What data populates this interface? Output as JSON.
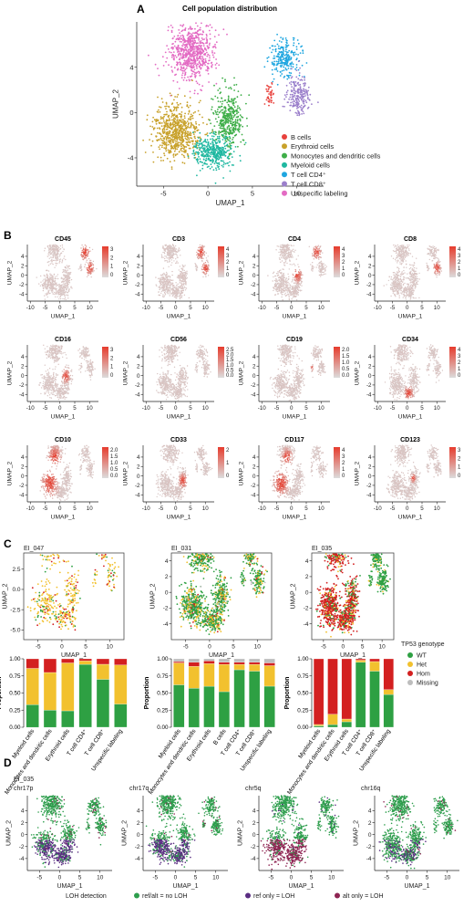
{
  "figure": {
    "panels": {
      "A": "A",
      "B": "B",
      "C": "C",
      "D": "D"
    }
  },
  "colors": {
    "B cells": "#E8413C",
    "Erythroid cells": "#C8A12A",
    "Monocytes and dendritic cells": "#3FAE49",
    "Myeloid cells": "#1FB8A1",
    "T cell CD4+": "#1FA6E0",
    "T cell CD8+": "#9B7FCB",
    "Unspecific labeling": "#E36BC3",
    "WT": "#2EA043",
    "Het": "#F2C12E",
    "Hom": "#D32020",
    "Missing": "#BDBDBD",
    "loh_ok": "#2E9E4D",
    "loh_ref": "#5A2D82",
    "loh_alt": "#8E2452"
  },
  "chart_data": [
    {
      "id": "A",
      "type": "scatter",
      "title": "Cell population distribution",
      "xlabel": "UMAP_1",
      "ylabel": "UMAP_2",
      "xlim": [
        -8,
        13
      ],
      "ylim": [
        -6.5,
        8
      ],
      "xticks": [
        "-5",
        "0",
        "5",
        "10"
      ],
      "yticks": [
        "-4",
        "0",
        "4"
      ],
      "legend": [
        "B cells",
        "Erythroid cells",
        "Monocytes and dendritic cells",
        "Myeloid cells",
        "T cell CD4+",
        "T cell CD8+",
        "Unspecific labeling"
      ],
      "legend_display": [
        "B cells",
        "Erythroid cells",
        "Monocytes and dendritic cells",
        "Myeloid cells",
        "T cell CD4⁺",
        "T cell CD8⁺",
        "Unspecific labeling"
      ],
      "clusters": [
        {
          "name": "Unspecific labeling",
          "cx": -1.8,
          "cy": 5.2,
          "sx": 1.6,
          "sy": 1.6,
          "n": 700
        },
        {
          "name": "Erythroid cells",
          "cx": -3.5,
          "cy": -1.8,
          "sx": 1.6,
          "sy": 1.5,
          "n": 700
        },
        {
          "name": "Monocytes and dendritic cells",
          "cx": 2.3,
          "cy": -0.6,
          "sx": 1.0,
          "sy": 1.6,
          "n": 400
        },
        {
          "name": "Myeloid cells",
          "cx": 0.6,
          "cy": -3.5,
          "sx": 1.4,
          "sy": 0.9,
          "n": 400
        },
        {
          "name": "T cell CD4+",
          "cx": 8.6,
          "cy": 4.8,
          "sx": 1.0,
          "sy": 1.0,
          "n": 250
        },
        {
          "name": "T cell CD8+",
          "cx": 10.2,
          "cy": 1.5,
          "sx": 0.8,
          "sy": 1.0,
          "n": 220
        },
        {
          "name": "B cells",
          "cx": 7.0,
          "cy": 1.6,
          "sx": 0.3,
          "sy": 0.7,
          "n": 40
        }
      ]
    },
    {
      "id": "B",
      "type": "scatter",
      "xlabel": "UMAP_1",
      "ylabel": "UMAP_2",
      "xticks": [
        "-10",
        "-5",
        "0",
        "5",
        "10"
      ],
      "yticks": [
        "-4",
        "-2",
        "0",
        "2",
        "4"
      ],
      "markers": [
        {
          "name": "CD45",
          "scale": [
            "3",
            "2",
            "1",
            "0"
          ],
          "hot": [
            [
              8.5,
              4.8,
              1.2
            ],
            [
              10,
              1.5,
              1.0
            ]
          ]
        },
        {
          "name": "CD3",
          "scale": [
            "4",
            "3",
            "2",
            "1",
            "0"
          ],
          "hot": [
            [
              8.5,
              4.8,
              1.0
            ],
            [
              10,
              1.5,
              0.9
            ]
          ]
        },
        {
          "name": "CD4",
          "scale": [
            "4",
            "3",
            "2",
            "1",
            "0"
          ],
          "hot": [
            [
              8.5,
              4.8,
              1.0
            ],
            [
              2,
              0,
              1.0
            ]
          ]
        },
        {
          "name": "CD8",
          "scale": [
            "4",
            "3",
            "2",
            "1",
            "0"
          ],
          "hot": [
            [
              10,
              1.5,
              0.9
            ]
          ]
        },
        {
          "name": "CD16",
          "scale": [
            "3",
            "2",
            "1",
            "0"
          ],
          "hot": [
            [
              2,
              0,
              1.0
            ]
          ]
        },
        {
          "name": "CD56",
          "scale": [
            "2.5",
            "2.0",
            "1.5",
            "1.0",
            "0.5",
            "0.0"
          ],
          "hot": [
            [
              0,
              0,
              0.3
            ]
          ]
        },
        {
          "name": "CD19",
          "scale": [
            "2.0",
            "1.5",
            "1.0",
            "0.5",
            "0.0"
          ],
          "hot": [
            [
              7,
              1.6,
              0.4
            ]
          ]
        },
        {
          "name": "CD34",
          "scale": [
            "4",
            "3",
            "2",
            "1",
            "0"
          ],
          "hot": [
            [
              0.5,
              -3.8,
              1.0
            ]
          ]
        },
        {
          "name": "CD10",
          "scale": [
            "2.0",
            "1.5",
            "1.0",
            "0.5",
            "0.0"
          ],
          "hot": [
            [
              -3.5,
              -1.5,
              2.0
            ],
            [
              -1.8,
              4,
              1.5
            ]
          ]
        },
        {
          "name": "CD33",
          "scale": [
            "2",
            "1",
            "0"
          ],
          "hot": [
            [
              2.5,
              -1,
              1.0
            ]
          ]
        },
        {
          "name": "CD117",
          "scale": [
            "4",
            "3",
            "2",
            "1",
            "0"
          ],
          "hot": [
            [
              -3.5,
              -1.5,
              1.8
            ],
            [
              -1.5,
              4,
              1.2
            ]
          ]
        },
        {
          "name": "CD123",
          "scale": [
            "3",
            "2",
            "1",
            "0"
          ],
          "hot": [
            [
              2,
              -0.5,
              0.6
            ]
          ]
        }
      ]
    },
    {
      "id": "C",
      "type": "bar",
      "legend_title": "TP53 genotype",
      "legend": [
        "WT",
        "Het",
        "Hom",
        "Missing"
      ],
      "ylabel": "Proportion",
      "yticks": [
        "0.00",
        "0.25",
        "0.50",
        "0.75",
        "1.00"
      ],
      "scatter_xlabel": "UMAP_1",
      "scatter_ylabel": "UMAP_2",
      "samples": [
        {
          "name": "EI_047",
          "xticks": [
            "-5",
            "0",
            "5",
            "10"
          ],
          "yticks": [
            "2.5",
            "0.0",
            "-2.5",
            "-5.0"
          ],
          "categories": [
            "Myeloid cells",
            "Monocytes and dendritic cells",
            "Erythroid cells",
            "T cell CD4+",
            "T cell CD8+",
            "Unspecific labeling"
          ],
          "categories_display": [
            "Myeloid cells",
            "Monocytes and dendritic cells",
            "Erythroid cells",
            "T cell CD4⁺",
            "T cell CD8⁺",
            "Unspecific labeling"
          ],
          "series": [
            {
              "name": "WT",
              "values": [
                0.33,
                0.25,
                0.24,
                0.92,
                0.7,
                0.34
              ]
            },
            {
              "name": "Het",
              "values": [
                0.53,
                0.55,
                0.7,
                0.05,
                0.22,
                0.57
              ]
            },
            {
              "name": "Hom",
              "values": [
                0.14,
                0.2,
                0.06,
                0.03,
                0.08,
                0.09
              ]
            },
            {
              "name": "Missing",
              "values": [
                0,
                0,
                0,
                0,
                0,
                0
              ]
            }
          ]
        },
        {
          "name": "EI_031",
          "xticks": [
            "-5",
            "0",
            "5",
            "10"
          ],
          "yticks": [
            "4",
            "2",
            "0",
            "-2",
            "-4"
          ],
          "categories": [
            "Myeloid cells",
            "Monocytes and dendritic cells",
            "Erythroid cells",
            "B cells",
            "T cell CD4+",
            "T cell CD8+",
            "Unspecific labeling"
          ],
          "categories_display": [
            "Myeloid cells",
            "Monocytes and dendritic cells",
            "Erythroid cells",
            "B cells",
            "T cell CD4⁺",
            "T cell CD8⁺",
            "Unspecific labeling"
          ],
          "series": [
            {
              "name": "WT",
              "values": [
                0.62,
                0.57,
                0.6,
                0.52,
                0.84,
                0.82,
                0.6
              ]
            },
            {
              "name": "Het",
              "values": [
                0.32,
                0.32,
                0.33,
                0.4,
                0.08,
                0.1,
                0.3
              ]
            },
            {
              "name": "Hom",
              "values": [
                0.02,
                0.06,
                0.04,
                0.03,
                0.03,
                0.03,
                0.04
              ]
            },
            {
              "name": "Missing",
              "values": [
                0.04,
                0.05,
                0.03,
                0.05,
                0.05,
                0.05,
                0.06
              ]
            }
          ]
        },
        {
          "name": "EI_035",
          "xticks": [
            "-5",
            "0",
            "5",
            "10"
          ],
          "yticks": [
            "4",
            "2",
            "0",
            "-2",
            "-4"
          ],
          "categories": [
            "Myeloid cells",
            "Monocytes and dendritic cells",
            "Erythroid cells",
            "T cell CD4+",
            "T cell CD8+",
            "Unspecific labeling"
          ],
          "categories_display": [
            "Myeloid cells",
            "Monocytes and dendritic cells",
            "Erythroid cells",
            "T cell CD4⁺",
            "T cell CD8⁺",
            "Unspecific labeling"
          ],
          "series": [
            {
              "name": "WT",
              "values": [
                0.02,
                0.04,
                0.08,
                0.95,
                0.82,
                0.48
              ]
            },
            {
              "name": "Het",
              "values": [
                0.02,
                0.15,
                0.04,
                0.03,
                0.14,
                0.07
              ]
            },
            {
              "name": "Hom",
              "values": [
                0.96,
                0.81,
                0.88,
                0.02,
                0.04,
                0.45
              ]
            },
            {
              "name": "Missing",
              "values": [
                0,
                0,
                0,
                0,
                0,
                0
              ]
            }
          ]
        }
      ]
    },
    {
      "id": "D",
      "type": "scatter",
      "sample": "EI_035",
      "xlabel": "UMAP_1",
      "ylabel": "UMAP_2",
      "xticks": [
        "-5",
        "0",
        "5",
        "10"
      ],
      "yticks": [
        "4",
        "2",
        "0",
        "-2",
        "-4"
      ],
      "panels": [
        "chr17p",
        "chr17q",
        "chr5q",
        "chr16q"
      ],
      "legend_title": "LOH detection",
      "legend": [
        "ref/alt = no LOH",
        "ref only = LOH",
        "alt only = LOH"
      ]
    }
  ]
}
